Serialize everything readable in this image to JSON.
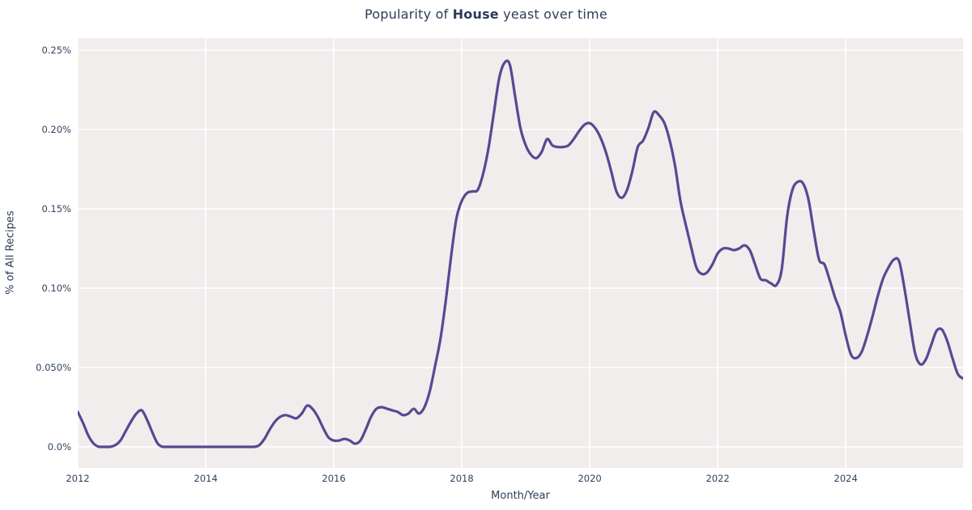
{
  "title": {
    "prefix": "Popularity of ",
    "emphasis": "House",
    "suffix": " yeast over time"
  },
  "colors": {
    "figure_bg": "#ffffff",
    "plot_bg": "#f0edec",
    "grid": "#ffffff",
    "line": "#5a4792",
    "text": "#2e3d59",
    "tick_text": "#334261"
  },
  "chart_data": {
    "type": "line",
    "title": "Popularity of House yeast over time",
    "xlabel": "Month/Year",
    "ylabel": "% of All Recipes",
    "grid": "on",
    "legend": "none",
    "x_tick_labels": [
      "2012",
      "2014",
      "2016",
      "2018",
      "2020",
      "2022",
      "2024"
    ],
    "x_tick_years": [
      2012,
      2014,
      2016,
      2018,
      2020,
      2022,
      2024
    ],
    "y_tick_labels": [
      "0.0%",
      "0.050%",
      "0.10%",
      "0.15%",
      "0.20%",
      "0.25%"
    ],
    "y_tick_values": [
      0,
      0.05,
      0.1,
      0.15,
      0.2,
      0.25
    ],
    "ylim": [
      -0.0133,
      0.2577
    ],
    "xlim_years": [
      2012.0,
      2025.917
    ],
    "series": [
      {
        "name": "House",
        "color": "#5a4792",
        "unit": "% of all recipes",
        "frequency": "monthly",
        "start": "2012-01",
        "end": "2025-11",
        "values": [
          0.022,
          0.015,
          0.007,
          0.002,
          0,
          0,
          0,
          0.001,
          0.004,
          0.01,
          0.016,
          0.021,
          0.023,
          0.017,
          0.009,
          0.002,
          0,
          0,
          0,
          0,
          0,
          0,
          0,
          0,
          0,
          0,
          0,
          0,
          0,
          0,
          0,
          0,
          0,
          0,
          0.001,
          0.005,
          0.011,
          0.016,
          0.019,
          0.02,
          0.019,
          0.018,
          0.021,
          0.026,
          0.024,
          0.019,
          0.012,
          0.006,
          0.004,
          0.004,
          0.005,
          0.004,
          0.002,
          0.004,
          0.011,
          0.019,
          0.024,
          0.025,
          0.024,
          0.023,
          0.022,
          0.02,
          0.021,
          0.024,
          0.021,
          0.025,
          0.035,
          0.051,
          0.068,
          0.092,
          0.12,
          0.144,
          0.155,
          0.16,
          0.161,
          0.162,
          0.172,
          0.188,
          0.21,
          0.232,
          0.242,
          0.241,
          0.221,
          0.201,
          0.19,
          0.184,
          0.182,
          0.186,
          0.194,
          0.19,
          0.189,
          0.189,
          0.19,
          0.194,
          0.199,
          0.203,
          0.204,
          0.201,
          0.195,
          0.186,
          0.174,
          0.161,
          0.157,
          0.162,
          0.174,
          0.189,
          0.193,
          0.201,
          0.211,
          0.209,
          0.204,
          0.193,
          0.177,
          0.155,
          0.14,
          0.126,
          0.113,
          0.109,
          0.11,
          0.115,
          0.122,
          0.125,
          0.125,
          0.124,
          0.125,
          0.127,
          0.124,
          0.115,
          0.106,
          0.105,
          0.103,
          0.102,
          0.112,
          0.145,
          0.162,
          0.167,
          0.166,
          0.156,
          0.136,
          0.118,
          0.115,
          0.105,
          0.094,
          0.085,
          0.07,
          0.058,
          0.056,
          0.06,
          0.07,
          0.082,
          0.095,
          0.106,
          0.113,
          0.118,
          0.117,
          0.1,
          0.079,
          0.059,
          0.052,
          0.055,
          0.064,
          0.073,
          0.074,
          0.067,
          0.056,
          0.046,
          0.043
        ]
      }
    ]
  }
}
